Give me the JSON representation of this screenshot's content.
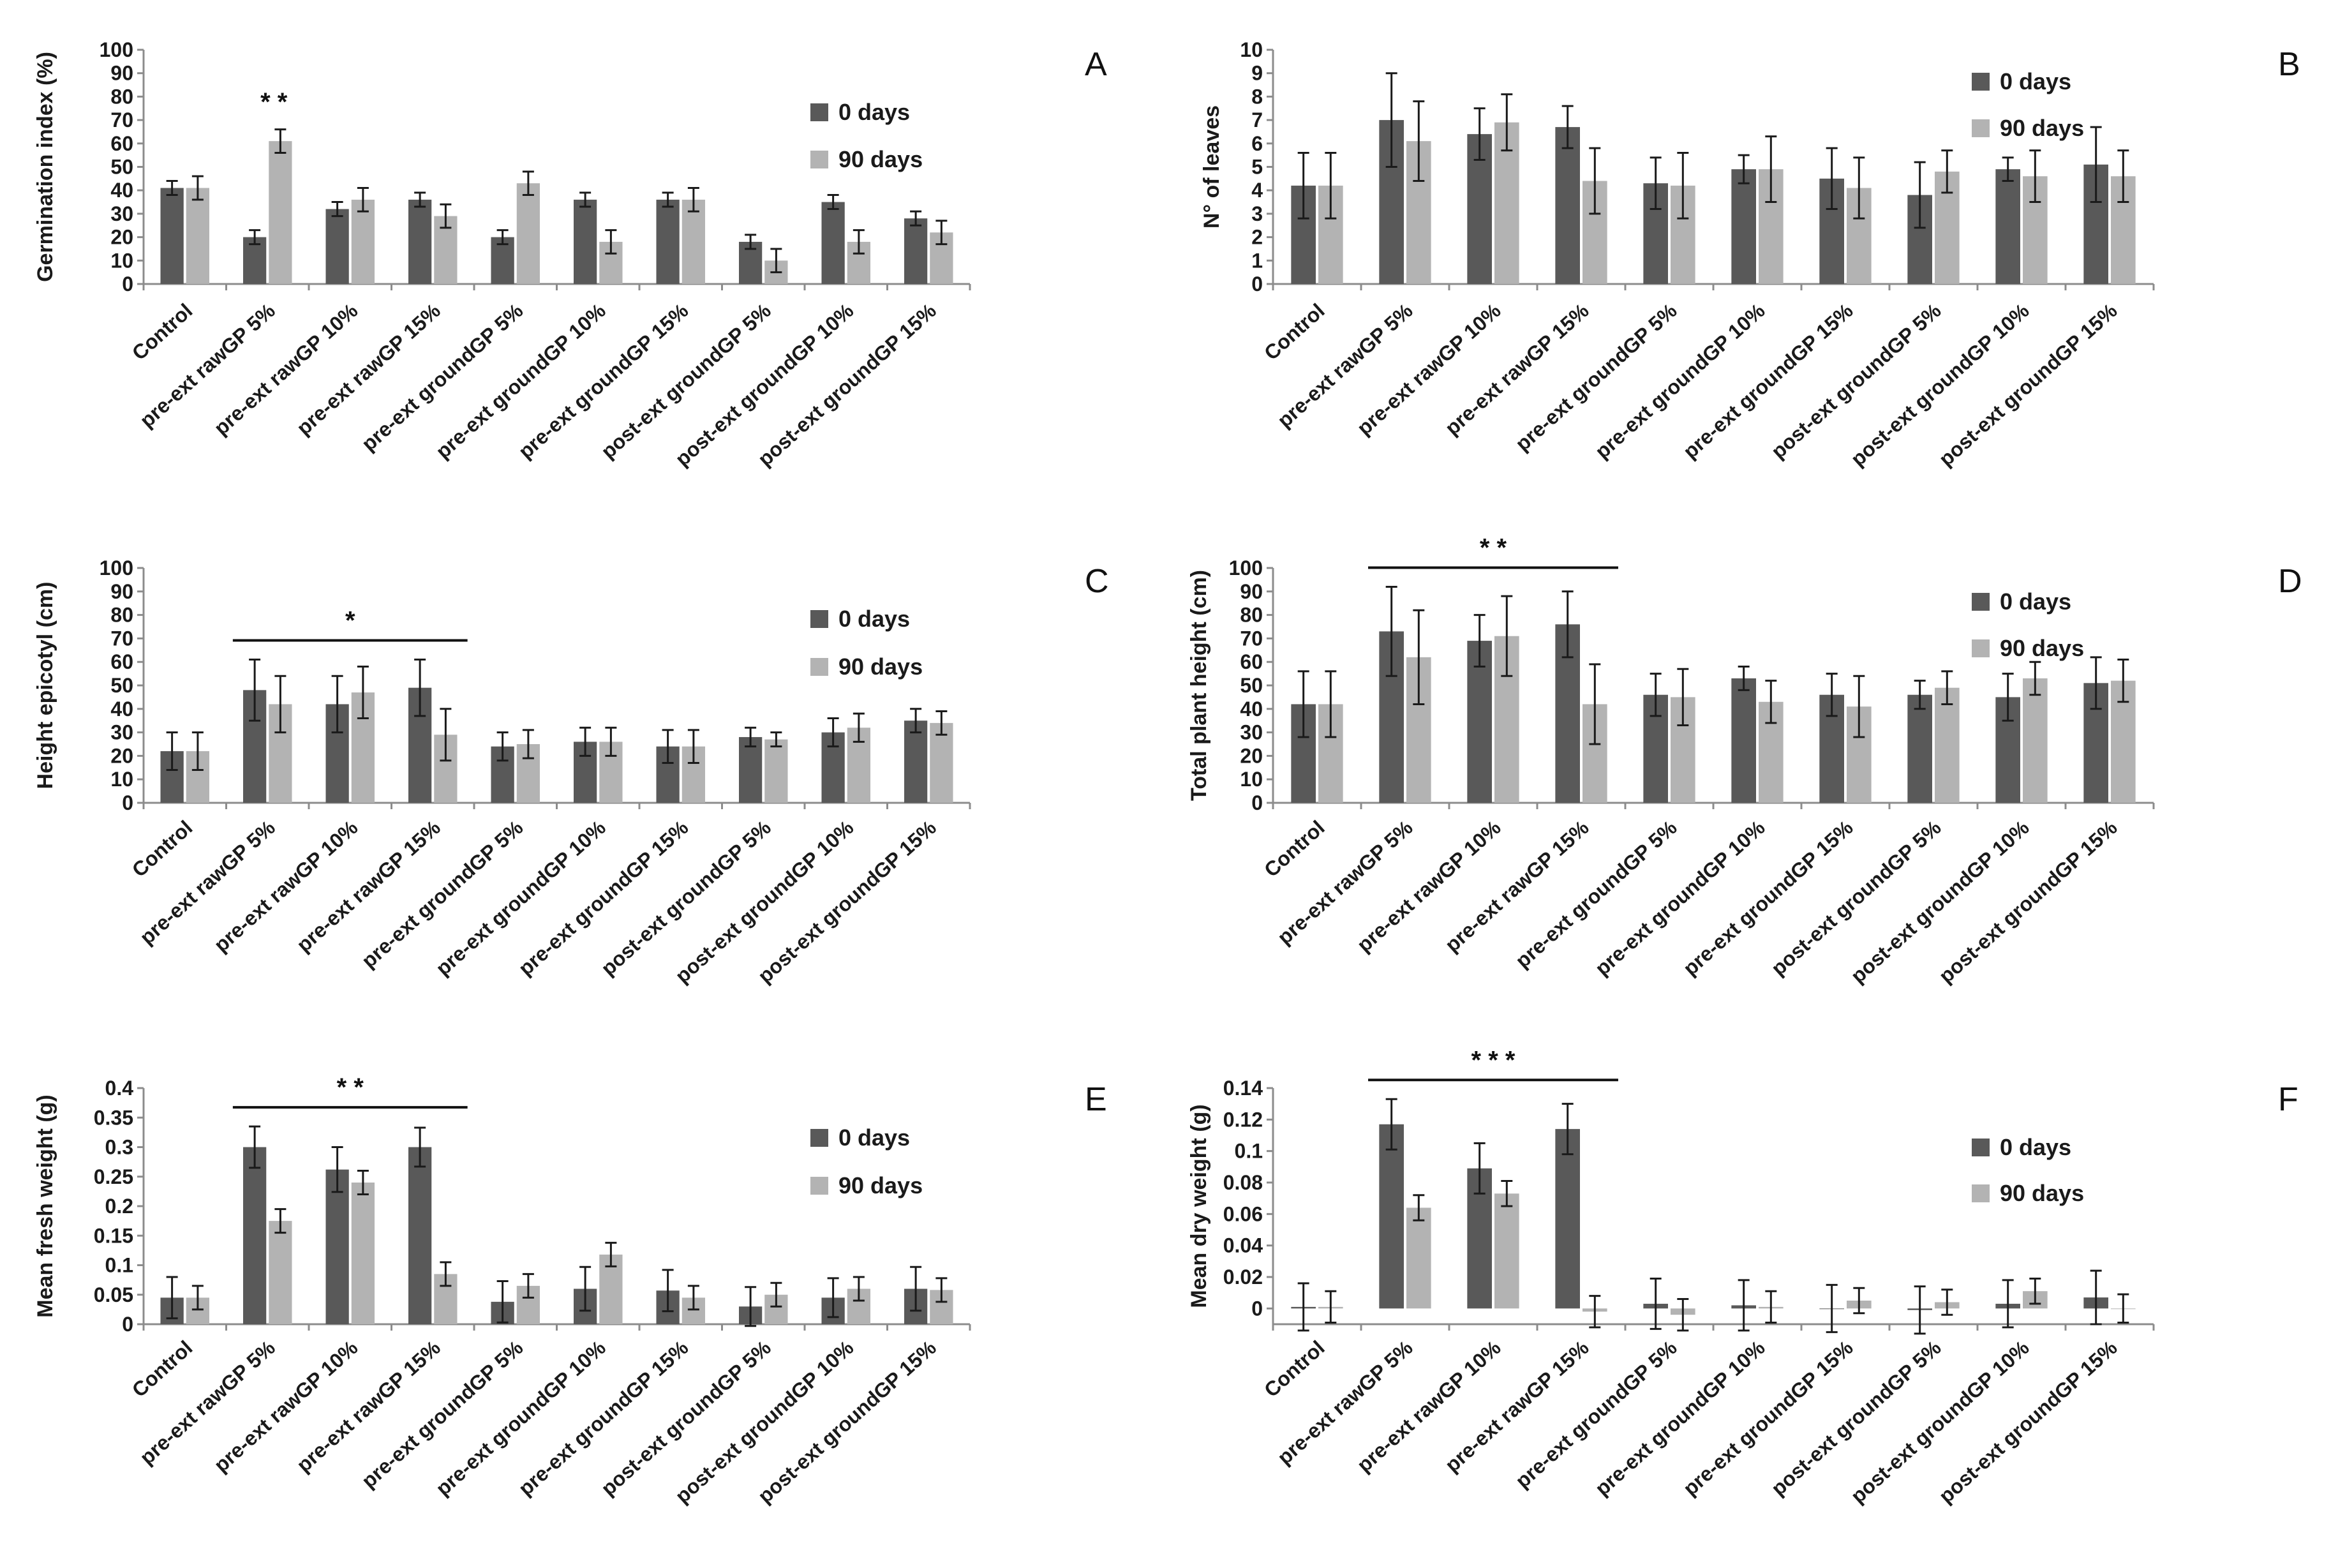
{
  "figure": {
    "title": ""
  },
  "colors": {
    "day0": "#595959",
    "day90": "#b3b3b3",
    "axis": "#8c8c8c",
    "errorbar": "#1a1a1a",
    "text": "#1a1a1a"
  },
  "chart_data": [
    {
      "id": "A",
      "type": "bar",
      "panel_label": "A",
      "title": "",
      "xlabel": "",
      "ylabel": "Germination index (%)",
      "ylim": [
        0,
        100
      ],
      "yticks": [
        "0",
        "10",
        "20",
        "30",
        "40",
        "50",
        "60",
        "70",
        "80",
        "90",
        "100"
      ],
      "categories": [
        "Control",
        "pre-ext rawGP 5%",
        "pre-ext rawGP 10%",
        "pre-ext rawGP 15%",
        "pre-ext groundGP 5%",
        "pre-ext groundGP 10%",
        "pre-ext groundGP 15%",
        "post-ext groundGP 5%",
        "post-ext groundGP 10%",
        "post-ext groundGP 15%"
      ],
      "series": [
        {
          "name": "0 days",
          "values": [
            41,
            20,
            32,
            36,
            20,
            36,
            36,
            18,
            35,
            28
          ],
          "errors": [
            3,
            3,
            3,
            3,
            3,
            3,
            3,
            3,
            3,
            3
          ]
        },
        {
          "name": "90 days",
          "values": [
            41,
            61,
            36,
            29,
            43,
            18,
            36,
            10,
            18,
            22
          ],
          "errors": [
            5,
            5,
            5,
            5,
            5,
            5,
            5,
            5,
            5,
            5
          ]
        }
      ],
      "annotations": [
        {
          "text": "* *",
          "over": [
            1,
            1
          ]
        }
      ]
    },
    {
      "id": "B",
      "type": "bar",
      "panel_label": "B",
      "title": "",
      "xlabel": "",
      "ylabel": "N° of leaves",
      "ylim": [
        0,
        10
      ],
      "yticks": [
        "0",
        "1",
        "2",
        "3",
        "4",
        "5",
        "6",
        "7",
        "8",
        "9",
        "10"
      ],
      "categories": [
        "Control",
        "pre-ext rawGP 5%",
        "pre-ext rawGP 10%",
        "pre-ext rawGP 15%",
        "pre-ext groundGP 5%",
        "pre-ext groundGP 10%",
        "pre-ext groundGP 15%",
        "post-ext groundGP 5%",
        "post-ext groundGP 10%",
        "post-ext groundGP 15%"
      ],
      "series": [
        {
          "name": "0 days",
          "values": [
            4.2,
            7.0,
            6.4,
            6.7,
            4.3,
            4.9,
            4.5,
            3.8,
            4.9,
            5.1
          ],
          "errors": [
            1.4,
            2.0,
            1.1,
            0.9,
            1.1,
            0.6,
            1.3,
            1.4,
            0.5,
            1.6
          ]
        },
        {
          "name": "90 days",
          "values": [
            4.2,
            6.1,
            6.9,
            4.4,
            4.2,
            4.9,
            4.1,
            4.8,
            4.6,
            4.6
          ],
          "errors": [
            1.4,
            1.7,
            1.2,
            1.4,
            1.4,
            1.4,
            1.3,
            0.9,
            1.1,
            1.1
          ]
        }
      ],
      "annotations": []
    },
    {
      "id": "C",
      "type": "bar",
      "panel_label": "C",
      "title": "",
      "xlabel": "",
      "ylabel": "Height epicotyl (cm)",
      "ylim": [
        0,
        100
      ],
      "yticks": [
        "0",
        "10",
        "20",
        "30",
        "40",
        "50",
        "60",
        "70",
        "80",
        "90",
        "100"
      ],
      "categories": [
        "Control",
        "pre-ext rawGP 5%",
        "pre-ext rawGP 10%",
        "pre-ext rawGP 15%",
        "pre-ext groundGP 5%",
        "pre-ext groundGP 10%",
        "pre-ext groundGP 15%",
        "post-ext groundGP 5%",
        "post-ext groundGP 10%",
        "post-ext groundGP 15%"
      ],
      "series": [
        {
          "name": "0 days",
          "values": [
            22,
            48,
            42,
            49,
            24,
            26,
            24,
            28,
            30,
            35
          ],
          "errors": [
            8,
            13,
            12,
            12,
            6,
            6,
            7,
            4,
            6,
            5
          ]
        },
        {
          "name": "90 days",
          "values": [
            22,
            42,
            47,
            29,
            25,
            26,
            24,
            27,
            32,
            34
          ],
          "errors": [
            8,
            12,
            11,
            11,
            6,
            6,
            7,
            3,
            6,
            5
          ]
        }
      ],
      "annotations": [
        {
          "text": "*",
          "over": [
            1,
            3
          ]
        }
      ]
    },
    {
      "id": "D",
      "type": "bar",
      "panel_label": "D",
      "title": "",
      "xlabel": "",
      "ylabel": "Total plant height (cm)",
      "ylim": [
        0,
        100
      ],
      "yticks": [
        "0",
        "10",
        "20",
        "30",
        "40",
        "50",
        "60",
        "70",
        "80",
        "90",
        "100"
      ],
      "categories": [
        "Control",
        "pre-ext rawGP 5%",
        "pre-ext rawGP 10%",
        "pre-ext rawGP 15%",
        "pre-ext groundGP 5%",
        "pre-ext groundGP 10%",
        "pre-ext groundGP 15%",
        "post-ext groundGP 5%",
        "post-ext groundGP 10%",
        "post-ext groundGP 15%"
      ],
      "series": [
        {
          "name": "0 days",
          "values": [
            42,
            73,
            69,
            76,
            46,
            53,
            46,
            46,
            45,
            51
          ],
          "errors": [
            14,
            19,
            11,
            14,
            9,
            5,
            9,
            6,
            10,
            11
          ]
        },
        {
          "name": "90 days",
          "values": [
            42,
            62,
            71,
            42,
            45,
            43,
            41,
            49,
            53,
            52
          ],
          "errors": [
            14,
            20,
            17,
            17,
            12,
            9,
            13,
            7,
            7,
            9
          ]
        }
      ],
      "annotations": [
        {
          "text": "* *",
          "over": [
            1,
            3
          ]
        }
      ]
    },
    {
      "id": "E",
      "type": "bar",
      "panel_label": "E",
      "title": "",
      "xlabel": "",
      "ylabel": "Mean fresh weight (g)",
      "ylim": [
        0,
        0.4
      ],
      "yticks": [
        "0",
        "0.05",
        "0.1",
        "0.15",
        "0.2",
        "0.25",
        "0.3",
        "0.35",
        "0.4"
      ],
      "categories": [
        "Control",
        "pre-ext rawGP 5%",
        "pre-ext rawGP 10%",
        "pre-ext rawGP 15%",
        "pre-ext groundGP 5%",
        "pre-ext groundGP 10%",
        "pre-ext groundGP 15%",
        "post-ext groundGP 5%",
        "post-ext groundGP 10%",
        "post-ext groundGP 15%"
      ],
      "series": [
        {
          "name": "0 days",
          "values": [
            0.045,
            0.3,
            0.262,
            0.3,
            0.038,
            0.06,
            0.057,
            0.03,
            0.045,
            0.06
          ],
          "errors": [
            0.035,
            0.035,
            0.038,
            0.033,
            0.035,
            0.037,
            0.035,
            0.033,
            0.033,
            0.037
          ]
        },
        {
          "name": "90 days",
          "values": [
            0.045,
            0.175,
            0.24,
            0.085,
            0.065,
            0.118,
            0.045,
            0.05,
            0.06,
            0.058
          ],
          "errors": [
            0.02,
            0.02,
            0.02,
            0.02,
            0.02,
            0.02,
            0.02,
            0.02,
            0.02,
            0.02
          ]
        }
      ],
      "annotations": [
        {
          "text": "* *",
          "over": [
            1,
            3
          ]
        }
      ]
    },
    {
      "id": "F",
      "type": "bar",
      "panel_label": "F",
      "title": "",
      "xlabel": "",
      "ylabel": "Mean dry weight (g)",
      "ylim": [
        -0.01,
        0.14
      ],
      "yticks": [
        "0",
        "0.02",
        "0.04",
        "0.06",
        "0.08",
        "0.1",
        "0.12",
        "0.14"
      ],
      "categories": [
        "Control",
        "pre-ext rawGP 5%",
        "pre-ext rawGP 10%",
        "pre-ext rawGP 15%",
        "pre-ext groundGP 5%",
        "pre-ext groundGP 10%",
        "pre-ext groundGP 15%",
        "post-ext groundGP 5%",
        "post-ext groundGP 10%",
        "post-ext groundGP 15%"
      ],
      "series": [
        {
          "name": "0 days",
          "values": [
            0.001,
            0.117,
            0.089,
            0.114,
            0.003,
            0.002,
            0.0,
            -0.001,
            0.003,
            0.007
          ],
          "errors": [
            0.015,
            0.016,
            0.016,
            0.016,
            0.016,
            0.016,
            0.015,
            0.015,
            0.015,
            0.017
          ]
        },
        {
          "name": "90 days",
          "values": [
            0.001,
            0.064,
            0.073,
            -0.002,
            -0.004,
            0.001,
            0.005,
            0.004,
            0.011,
            0.0
          ],
          "errors": [
            0.01,
            0.008,
            0.008,
            0.01,
            0.01,
            0.01,
            0.008,
            0.008,
            0.008,
            0.009
          ]
        }
      ],
      "annotations": [
        {
          "text": "* * *",
          "over": [
            1,
            3
          ]
        }
      ]
    }
  ]
}
